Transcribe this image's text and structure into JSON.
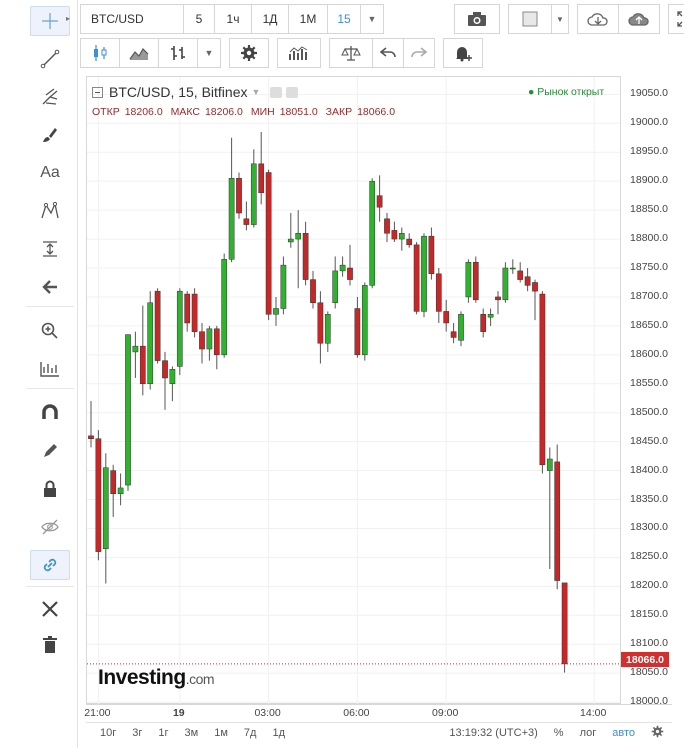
{
  "toolbar": {
    "symbol": "BTC/USD",
    "intervals": [
      "5",
      "1ч",
      "1Д",
      "1М",
      "15"
    ],
    "selected_interval": "15"
  },
  "legend": {
    "title": "BTC/USD, 15, Bitfinex",
    "open_label": "ОТКР",
    "open": "18206.0",
    "high_label": "МАКС",
    "high": "18206.0",
    "low_label": "МИН",
    "low": "18051.0",
    "close_label": "ЗАКР",
    "close": "18066.0",
    "market_status": "● Рынок открыт"
  },
  "last_price_label": "18066.0",
  "logo": {
    "main": "Investing",
    "suffix": ".com"
  },
  "bottom_bar": {
    "ranges": [
      "10г",
      "3г",
      "1г",
      "3м",
      "1м",
      "7д",
      "1д"
    ],
    "time": "13:19:32 (UTC+3)",
    "percent": "%",
    "log": "лог",
    "auto": "авто"
  },
  "colors": {
    "up": "#2fb32f",
    "down": "#c62828",
    "accent": "#3d8fd6"
  },
  "chart_data": {
    "type": "candlestick",
    "title": "BTC/USD, 15, Bitfinex",
    "y_ticks": [
      18000,
      18050,
      18100,
      18150,
      18200,
      18250,
      18300,
      18350,
      18400,
      18450,
      18500,
      18550,
      18600,
      18650,
      18700,
      18750,
      18800,
      18850,
      18900,
      18950,
      19000,
      19050
    ],
    "ylim": [
      17995,
      19080
    ],
    "x_ticks": [
      {
        "label": "21:00",
        "index": 1
      },
      {
        "label": "19",
        "index": 12
      },
      {
        "label": "03:00",
        "index": 24
      },
      {
        "label": "06:00",
        "index": 36
      },
      {
        "label": "09:00",
        "index": 48
      },
      {
        "label": "14:00",
        "index": 68
      }
    ],
    "last_price": 18066.0,
    "candles": [
      {
        "o": 18460,
        "h": 18520,
        "l": 18440,
        "c": 18455
      },
      {
        "o": 18455,
        "h": 18470,
        "l": 18245,
        "c": 18260
      },
      {
        "o": 18265,
        "h": 18430,
        "l": 18205,
        "c": 18405
      },
      {
        "o": 18400,
        "h": 18410,
        "l": 18320,
        "c": 18360
      },
      {
        "o": 18360,
        "h": 18395,
        "l": 18340,
        "c": 18370
      },
      {
        "o": 18375,
        "h": 18635,
        "l": 18365,
        "c": 18635
      },
      {
        "o": 18605,
        "h": 18640,
        "l": 18560,
        "c": 18615
      },
      {
        "o": 18615,
        "h": 18685,
        "l": 18530,
        "c": 18550
      },
      {
        "o": 18550,
        "h": 18710,
        "l": 18540,
        "c": 18690
      },
      {
        "o": 18710,
        "h": 18715,
        "l": 18585,
        "c": 18590
      },
      {
        "o": 18590,
        "h": 18605,
        "l": 18505,
        "c": 18560
      },
      {
        "o": 18550,
        "h": 18580,
        "l": 18520,
        "c": 18575
      },
      {
        "o": 18580,
        "h": 18715,
        "l": 18565,
        "c": 18710
      },
      {
        "o": 18705,
        "h": 18710,
        "l": 18640,
        "c": 18655
      },
      {
        "o": 18705,
        "h": 18715,
        "l": 18630,
        "c": 18640
      },
      {
        "o": 18640,
        "h": 18655,
        "l": 18585,
        "c": 18610
      },
      {
        "o": 18610,
        "h": 18650,
        "l": 18590,
        "c": 18645
      },
      {
        "o": 18645,
        "h": 18650,
        "l": 18575,
        "c": 18600
      },
      {
        "o": 18600,
        "h": 18775,
        "l": 18595,
        "c": 18765
      },
      {
        "o": 18765,
        "h": 18975,
        "l": 18760,
        "c": 18905
      },
      {
        "o": 18905,
        "h": 18915,
        "l": 18835,
        "c": 18845
      },
      {
        "o": 18835,
        "h": 18865,
        "l": 18815,
        "c": 18825
      },
      {
        "o": 18825,
        "h": 18955,
        "l": 18820,
        "c": 18930
      },
      {
        "o": 18930,
        "h": 18985,
        "l": 18860,
        "c": 18880
      },
      {
        "o": 18915,
        "h": 18920,
        "l": 18660,
        "c": 18670
      },
      {
        "o": 18670,
        "h": 18700,
        "l": 18650,
        "c": 18680
      },
      {
        "o": 18680,
        "h": 18770,
        "l": 18670,
        "c": 18755
      },
      {
        "o": 18795,
        "h": 18845,
        "l": 18785,
        "c": 18800
      },
      {
        "o": 18800,
        "h": 18850,
        "l": 18715,
        "c": 18810
      },
      {
        "o": 18810,
        "h": 18830,
        "l": 18720,
        "c": 18730
      },
      {
        "o": 18730,
        "h": 18745,
        "l": 18680,
        "c": 18690
      },
      {
        "o": 18690,
        "h": 18710,
        "l": 18585,
        "c": 18620
      },
      {
        "o": 18620,
        "h": 18675,
        "l": 18605,
        "c": 18670
      },
      {
        "o": 18690,
        "h": 18770,
        "l": 18680,
        "c": 18745
      },
      {
        "o": 18745,
        "h": 18770,
        "l": 18735,
        "c": 18755
      },
      {
        "o": 18750,
        "h": 18790,
        "l": 18720,
        "c": 18730
      },
      {
        "o": 18680,
        "h": 18700,
        "l": 18595,
        "c": 18600
      },
      {
        "o": 18600,
        "h": 18725,
        "l": 18590,
        "c": 18720
      },
      {
        "o": 18720,
        "h": 18905,
        "l": 18715,
        "c": 18900
      },
      {
        "o": 18875,
        "h": 18910,
        "l": 18830,
        "c": 18855
      },
      {
        "o": 18835,
        "h": 18845,
        "l": 18795,
        "c": 18810
      },
      {
        "o": 18815,
        "h": 18830,
        "l": 18795,
        "c": 18800
      },
      {
        "o": 18800,
        "h": 18820,
        "l": 18780,
        "c": 18810
      },
      {
        "o": 18800,
        "h": 18810,
        "l": 18785,
        "c": 18790
      },
      {
        "o": 18790,
        "h": 18795,
        "l": 18670,
        "c": 18675
      },
      {
        "o": 18675,
        "h": 18810,
        "l": 18665,
        "c": 18805
      },
      {
        "o": 18805,
        "h": 18820,
        "l": 18730,
        "c": 18740
      },
      {
        "o": 18740,
        "h": 18750,
        "l": 18655,
        "c": 18675
      },
      {
        "o": 18675,
        "h": 18695,
        "l": 18640,
        "c": 18655
      },
      {
        "o": 18640,
        "h": 18655,
        "l": 18620,
        "c": 18630
      },
      {
        "o": 18625,
        "h": 18675,
        "l": 18615,
        "c": 18670
      },
      {
        "o": 18700,
        "h": 18765,
        "l": 18690,
        "c": 18760
      },
      {
        "o": 18760,
        "h": 18770,
        "l": 18690,
        "c": 18695
      },
      {
        "o": 18670,
        "h": 18680,
        "l": 18630,
        "c": 18640
      },
      {
        "o": 18665,
        "h": 18680,
        "l": 18650,
        "c": 18670
      },
      {
        "o": 18700,
        "h": 18710,
        "l": 18670,
        "c": 18695
      },
      {
        "o": 18695,
        "h": 18760,
        "l": 18690,
        "c": 18750
      },
      {
        "o": 18750,
        "h": 18765,
        "l": 18740,
        "c": 18750
      },
      {
        "o": 18745,
        "h": 18760,
        "l": 18725,
        "c": 18730
      },
      {
        "o": 18735,
        "h": 18750,
        "l": 18710,
        "c": 18720
      },
      {
        "o": 18725,
        "h": 18730,
        "l": 18660,
        "c": 18710
      },
      {
        "o": 18705,
        "h": 18710,
        "l": 18395,
        "c": 18410
      },
      {
        "o": 18400,
        "h": 18440,
        "l": 18230,
        "c": 18420
      },
      {
        "o": 18415,
        "h": 18445,
        "l": 18195,
        "c": 18210
      },
      {
        "o": 18206,
        "h": 18206,
        "l": 18051,
        "c": 18066
      }
    ]
  }
}
